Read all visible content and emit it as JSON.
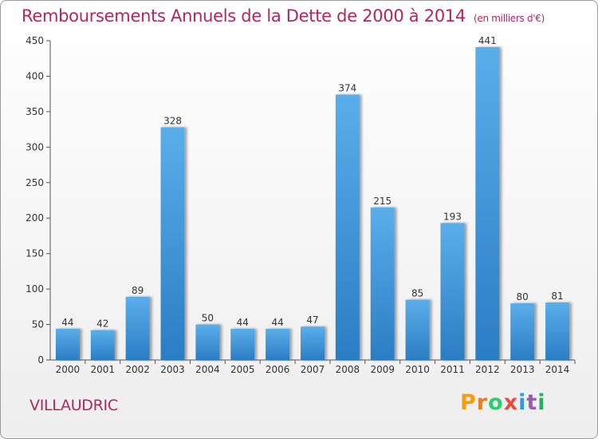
{
  "title": "Remboursements Annuels de la Dette de 2000 à 2014",
  "unit": "(en milliers d'€)",
  "commune": "VILLAUDRIC",
  "logo": {
    "letters": [
      "P",
      "r",
      "o",
      "x",
      "i",
      "t",
      "i"
    ],
    "colors": [
      "#f39c12",
      "#e67e22",
      "#2ecc71",
      "#e74c3c",
      "#3498db",
      "#9b59b6",
      "#27ae60"
    ]
  },
  "chart_data": {
    "type": "bar",
    "categories": [
      "2000",
      "2001",
      "2002",
      "2003",
      "2004",
      "2005",
      "2006",
      "2007",
      "2008",
      "2009",
      "2010",
      "2011",
      "2012",
      "2013",
      "2014"
    ],
    "values": [
      44,
      42,
      89,
      328,
      50,
      44,
      44,
      47,
      374,
      215,
      85,
      193,
      441,
      80,
      81
    ],
    "ylim": [
      0,
      450
    ],
    "yticks": [
      0,
      50,
      100,
      150,
      200,
      250,
      300,
      350,
      400,
      450
    ],
    "grid": false,
    "bar_color": "#3a8fd6"
  }
}
